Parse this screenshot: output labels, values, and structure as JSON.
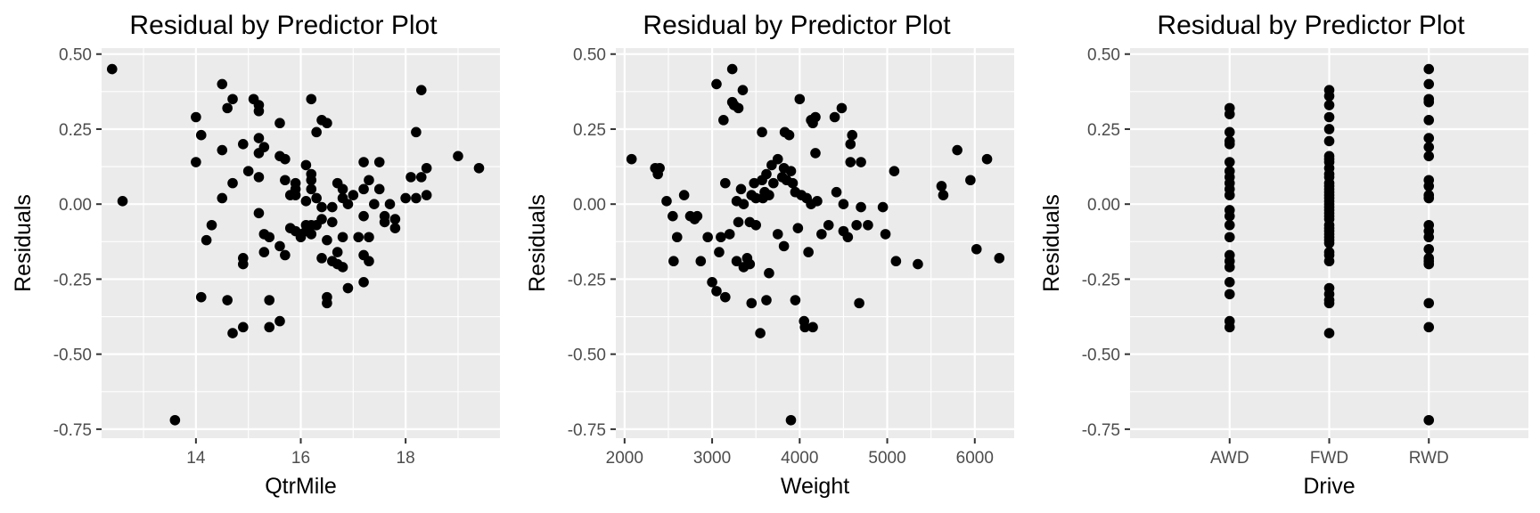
{
  "chart_data": [
    {
      "type": "scatter",
      "title": "Residual by Predictor Plot",
      "xlabel": "QtrMile",
      "ylabel": "Residuals",
      "xlim": [
        12.2,
        19.8
      ],
      "ylim": [
        -0.78,
        0.52
      ],
      "xticks": [
        14,
        16,
        18
      ],
      "xtick_labels": [
        "14",
        "16",
        "18"
      ],
      "yticks": [
        0.5,
        0.25,
        0.0,
        -0.25,
        -0.5,
        -0.75
      ],
      "ytick_labels": [
        "0.50",
        "0.25",
        "0.00",
        "-0.25",
        "-0.50",
        "-0.75"
      ],
      "grid": true,
      "points": [
        [
          12.4,
          0.45
        ],
        [
          12.6,
          0.01
        ],
        [
          13.6,
          -0.72
        ],
        [
          14.0,
          0.29
        ],
        [
          14.0,
          0.14
        ],
        [
          14.1,
          0.23
        ],
        [
          14.1,
          -0.31
        ],
        [
          14.2,
          -0.12
        ],
        [
          14.3,
          -0.07
        ],
        [
          14.5,
          0.4
        ],
        [
          14.5,
          0.18
        ],
        [
          14.5,
          0.02
        ],
        [
          14.6,
          0.32
        ],
        [
          14.6,
          -0.32
        ],
        [
          14.7,
          0.35
        ],
        [
          14.7,
          0.07
        ],
        [
          14.7,
          -0.43
        ],
        [
          14.9,
          0.2
        ],
        [
          14.9,
          -0.18
        ],
        [
          14.9,
          -0.2
        ],
        [
          14.9,
          -0.41
        ],
        [
          15.0,
          0.11
        ],
        [
          15.1,
          0.35
        ],
        [
          15.2,
          0.33
        ],
        [
          15.2,
          0.31
        ],
        [
          15.2,
          0.22
        ],
        [
          15.2,
          0.17
        ],
        [
          15.2,
          0.09
        ],
        [
          15.2,
          -0.03
        ],
        [
          15.3,
          0.19
        ],
        [
          15.3,
          -0.1
        ],
        [
          15.3,
          -0.16
        ],
        [
          15.4,
          -0.11
        ],
        [
          15.4,
          -0.32
        ],
        [
          15.4,
          -0.41
        ],
        [
          15.6,
          0.27
        ],
        [
          15.6,
          0.16
        ],
        [
          15.6,
          -0.14
        ],
        [
          15.6,
          -0.39
        ],
        [
          15.7,
          0.15
        ],
        [
          15.7,
          0.08
        ],
        [
          15.7,
          -0.17
        ],
        [
          15.8,
          0.03
        ],
        [
          15.8,
          -0.08
        ],
        [
          15.9,
          0.07
        ],
        [
          15.9,
          0.05
        ],
        [
          15.9,
          0.03
        ],
        [
          15.9,
          -0.09
        ],
        [
          16.0,
          -0.1
        ],
        [
          16.0,
          -0.11
        ],
        [
          16.1,
          0.13
        ],
        [
          16.1,
          0.01
        ],
        [
          16.1,
          -0.07
        ],
        [
          16.1,
          -0.09
        ],
        [
          16.2,
          0.35
        ],
        [
          16.2,
          0.1
        ],
        [
          16.2,
          0.08
        ],
        [
          16.2,
          0.05
        ],
        [
          16.2,
          -0.07
        ],
        [
          16.2,
          -0.1
        ],
        [
          16.3,
          0.24
        ],
        [
          16.3,
          0.02
        ],
        [
          16.3,
          -0.07
        ],
        [
          16.4,
          0.28
        ],
        [
          16.4,
          -0.01
        ],
        [
          16.4,
          -0.05
        ],
        [
          16.4,
          -0.18
        ],
        [
          16.5,
          0.27
        ],
        [
          16.5,
          -0.12
        ],
        [
          16.5,
          -0.31
        ],
        [
          16.5,
          -0.33
        ],
        [
          16.6,
          -0.19
        ],
        [
          16.6,
          -0.06
        ],
        [
          16.6,
          -0.01
        ],
        [
          16.7,
          0.07
        ],
        [
          16.7,
          -0.16
        ],
        [
          16.7,
          -0.2
        ],
        [
          16.8,
          0.05
        ],
        [
          16.8,
          0.02
        ],
        [
          16.8,
          -0.11
        ],
        [
          16.8,
          -0.21
        ],
        [
          16.9,
          0.0
        ],
        [
          16.9,
          -0.28
        ],
        [
          17.0,
          0.03
        ],
        [
          17.1,
          -0.11
        ],
        [
          17.2,
          0.14
        ],
        [
          17.2,
          0.05
        ],
        [
          17.2,
          -0.04
        ],
        [
          17.2,
          -0.17
        ],
        [
          17.2,
          -0.26
        ],
        [
          17.3,
          0.08
        ],
        [
          17.3,
          -0.11
        ],
        [
          17.3,
          -0.19
        ],
        [
          17.4,
          0.0
        ],
        [
          17.5,
          0.14
        ],
        [
          17.5,
          0.05
        ],
        [
          17.6,
          -0.04
        ],
        [
          17.6,
          -0.06
        ],
        [
          17.7,
          0.0
        ],
        [
          17.8,
          -0.05
        ],
        [
          17.8,
          -0.08
        ],
        [
          18.0,
          0.02
        ],
        [
          18.1,
          0.09
        ],
        [
          18.2,
          0.24
        ],
        [
          18.2,
          0.02
        ],
        [
          18.3,
          0.38
        ],
        [
          18.3,
          0.09
        ],
        [
          18.4,
          0.12
        ],
        [
          18.4,
          0.03
        ],
        [
          19.0,
          0.16
        ],
        [
          19.4,
          0.12
        ]
      ]
    },
    {
      "type": "scatter",
      "title": "Residual by Predictor Plot",
      "xlabel": "Weight",
      "ylabel": "Residuals",
      "xlim": [
        1900,
        6450
      ],
      "ylim": [
        -0.78,
        0.52
      ],
      "xticks": [
        2000,
        3000,
        4000,
        5000,
        6000
      ],
      "xtick_labels": [
        "2000",
        "3000",
        "4000",
        "5000",
        "6000"
      ],
      "yticks": [
        0.5,
        0.25,
        0.0,
        -0.25,
        -0.5,
        -0.75
      ],
      "ytick_labels": [
        "0.50",
        "0.25",
        "0.00",
        "-0.25",
        "-0.50",
        "-0.75"
      ],
      "grid": true,
      "points": [
        [
          2080,
          0.15
        ],
        [
          2350,
          0.12
        ],
        [
          2380,
          0.1
        ],
        [
          2400,
          0.12
        ],
        [
          2480,
          0.01
        ],
        [
          2550,
          -0.04
        ],
        [
          2560,
          -0.19
        ],
        [
          2600,
          -0.11
        ],
        [
          2680,
          0.03
        ],
        [
          2750,
          -0.04
        ],
        [
          2800,
          -0.05
        ],
        [
          2830,
          -0.04
        ],
        [
          2870,
          -0.19
        ],
        [
          2950,
          -0.11
        ],
        [
          3000,
          -0.26
        ],
        [
          3050,
          0.4
        ],
        [
          3050,
          -0.29
        ],
        [
          3080,
          -0.16
        ],
        [
          3100,
          -0.11
        ],
        [
          3130,
          0.28
        ],
        [
          3150,
          0.07
        ],
        [
          3150,
          -0.31
        ],
        [
          3200,
          -0.1
        ],
        [
          3230,
          0.45
        ],
        [
          3230,
          0.34
        ],
        [
          3250,
          0.33
        ],
        [
          3280,
          0.01
        ],
        [
          3280,
          -0.19
        ],
        [
          3300,
          0.32
        ],
        [
          3300,
          -0.06
        ],
        [
          3330,
          0.05
        ],
        [
          3350,
          0.38
        ],
        [
          3360,
          0.0
        ],
        [
          3360,
          -0.21
        ],
        [
          3400,
          -0.18
        ],
        [
          3430,
          -0.06
        ],
        [
          3430,
          -0.2
        ],
        [
          3450,
          0.03
        ],
        [
          3450,
          -0.33
        ],
        [
          3480,
          0.07
        ],
        [
          3500,
          0.02
        ],
        [
          3500,
          -0.07
        ],
        [
          3550,
          -0.43
        ],
        [
          3570,
          0.24
        ],
        [
          3570,
          0.08
        ],
        [
          3580,
          0.02
        ],
        [
          3600,
          0.04
        ],
        [
          3620,
          0.1
        ],
        [
          3620,
          -0.32
        ],
        [
          3650,
          0.03
        ],
        [
          3650,
          -0.23
        ],
        [
          3680,
          0.13
        ],
        [
          3700,
          0.07
        ],
        [
          3750,
          0.15
        ],
        [
          3750,
          -0.1
        ],
        [
          3800,
          0.09
        ],
        [
          3820,
          0.12
        ],
        [
          3820,
          -0.14
        ],
        [
          3830,
          0.24
        ],
        [
          3850,
          0.08
        ],
        [
          3880,
          0.23
        ],
        [
          3900,
          -0.72
        ],
        [
          3900,
          0.11
        ],
        [
          3920,
          0.07
        ],
        [
          3950,
          0.04
        ],
        [
          3950,
          -0.32
        ],
        [
          3980,
          -0.08
        ],
        [
          4000,
          0.35
        ],
        [
          4020,
          0.03
        ],
        [
          4050,
          -0.39
        ],
        [
          4060,
          -0.41
        ],
        [
          4080,
          0.02
        ],
        [
          4100,
          -0.16
        ],
        [
          4130,
          0.28
        ],
        [
          4130,
          0.0
        ],
        [
          4150,
          0.27
        ],
        [
          4150,
          -0.41
        ],
        [
          4180,
          0.29
        ],
        [
          4180,
          0.17
        ],
        [
          4200,
          0.01
        ],
        [
          4250,
          -0.1
        ],
        [
          4330,
          -0.07
        ],
        [
          4400,
          0.29
        ],
        [
          4420,
          0.04
        ],
        [
          4480,
          0.32
        ],
        [
          4500,
          0.0
        ],
        [
          4500,
          -0.09
        ],
        [
          4550,
          -0.11
        ],
        [
          4580,
          0.2
        ],
        [
          4580,
          0.14
        ],
        [
          4600,
          0.23
        ],
        [
          4650,
          -0.07
        ],
        [
          4680,
          -0.33
        ],
        [
          4700,
          -0.01
        ],
        [
          4700,
          0.14
        ],
        [
          4780,
          -0.07
        ],
        [
          4950,
          -0.01
        ],
        [
          4980,
          -0.1
        ],
        [
          5080,
          0.11
        ],
        [
          5100,
          -0.19
        ],
        [
          5350,
          -0.2
        ],
        [
          5620,
          0.06
        ],
        [
          5640,
          0.03
        ],
        [
          5800,
          0.18
        ],
        [
          5950,
          0.08
        ],
        [
          6020,
          -0.15
        ],
        [
          6140,
          0.15
        ],
        [
          6280,
          -0.18
        ]
      ]
    },
    {
      "type": "scatter",
      "title": "Residual by Predictor Plot",
      "xlabel": "Drive",
      "ylabel": "Residuals",
      "categories": [
        "AWD",
        "FWD",
        "RWD"
      ],
      "ylim": [
        -0.78,
        0.52
      ],
      "yticks": [
        0.5,
        0.25,
        0.0,
        -0.25,
        -0.5,
        -0.75
      ],
      "ytick_labels": [
        "0.50",
        "0.25",
        "0.00",
        "-0.25",
        "-0.50",
        "-0.75"
      ],
      "grid": true,
      "series": [
        {
          "category": "AWD",
          "values": [
            0.32,
            0.3,
            0.24,
            0.21,
            0.2,
            0.14,
            0.11,
            0.09,
            0.07,
            0.05,
            0.03,
            -0.02,
            -0.04,
            -0.07,
            -0.11,
            -0.17,
            -0.19,
            -0.21,
            -0.26,
            -0.3,
            -0.39,
            -0.41
          ]
        },
        {
          "category": "FWD",
          "values": [
            0.38,
            0.36,
            0.33,
            0.29,
            0.25,
            0.21,
            0.16,
            0.15,
            0.14,
            0.12,
            0.1,
            0.09,
            0.07,
            0.06,
            0.05,
            0.04,
            0.03,
            0.02,
            0.01,
            0.0,
            -0.01,
            -0.02,
            -0.03,
            -0.04,
            -0.05,
            -0.07,
            -0.08,
            -0.09,
            -0.1,
            -0.11,
            -0.12,
            -0.13,
            -0.16,
            -0.17,
            -0.19,
            -0.28,
            -0.3,
            -0.32,
            -0.33,
            -0.43
          ]
        },
        {
          "category": "RWD",
          "values": [
            0.45,
            0.4,
            0.35,
            0.34,
            0.28,
            0.22,
            0.19,
            0.16,
            0.08,
            0.06,
            0.03,
            0.02,
            -0.07,
            -0.09,
            -0.11,
            -0.15,
            -0.18,
            -0.19,
            -0.2,
            -0.33,
            -0.41,
            -0.72
          ]
        }
      ]
    }
  ]
}
